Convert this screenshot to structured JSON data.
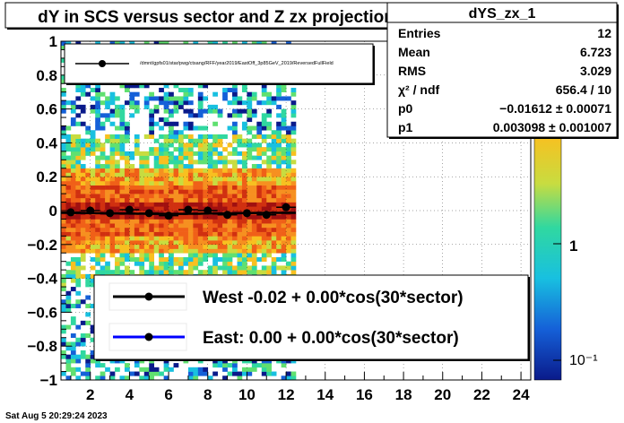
{
  "canvas": {
    "title": "dY in SCS versus sector and Z zx projection",
    "timestamp": "Sat Aug  5 20:29:24 2023"
  },
  "stats": {
    "name": "dYS_zx_1",
    "rows": [
      {
        "label": "Entries",
        "value": "12"
      },
      {
        "label": "Mean",
        "value": "6.723"
      },
      {
        "label": "RMS",
        "value": "3.029"
      },
      {
        "label": "χ² / ndf",
        "value": "656.4 / 10"
      },
      {
        "label": "p0",
        "value": "−0.01612 ± 0.00071"
      },
      {
        "label": "p1",
        "value": "0.003098 ± 0.001007"
      }
    ]
  },
  "legend_top": {
    "entry": "/dmnt/gpfs01/star/pwg/ctsang/RFF/year2019/EastOff_3p85GeV_2019/ReversedFullField"
  },
  "legend_bottom": {
    "entries": [
      {
        "label": "West -0.02 +  0.00*cos(30*sector)",
        "color": "#000000"
      },
      {
        "label": "East:  0.00 +  0.00*cos(30*sector)",
        "color": "#0000ff"
      }
    ]
  },
  "colors": {
    "marker": "#000000",
    "fit_line": "#000000",
    "frame": "#000000"
  },
  "chart_data": {
    "type": "scatter",
    "overlay": "heatmap",
    "x": [
      1,
      2,
      3,
      4,
      5,
      6,
      7,
      8,
      9,
      10,
      11,
      12
    ],
    "y": [
      -0.01,
      0.0,
      -0.015,
      0.005,
      -0.015,
      -0.03,
      0.005,
      0.0,
      -0.025,
      -0.015,
      -0.025,
      0.02
    ],
    "yerr": [
      0.004,
      0.004,
      0.004,
      0.004,
      0.004,
      0.004,
      0.004,
      0.004,
      0.004,
      0.004,
      0.004,
      0.004
    ],
    "fit": {
      "p0": -0.01612,
      "p1": 0.003098
    },
    "xlim": [
      0.5,
      24.5
    ],
    "ylim": [
      -1,
      1
    ],
    "xticks": [
      "2",
      "4",
      "6",
      "8",
      "10",
      "12",
      "14",
      "16",
      "18",
      "20",
      "22",
      "24"
    ],
    "yticks": [
      "−1",
      "−0.8",
      "−0.6",
      "−0.4",
      "−0.2",
      "0",
      "0.2",
      "0.4",
      "0.6",
      "0.8",
      "1"
    ],
    "zscale": "log",
    "zticks": [
      "1",
      "10⁻¹"
    ],
    "grid": true,
    "heatmap_xrange": [
      0.5,
      12.5
    ]
  }
}
